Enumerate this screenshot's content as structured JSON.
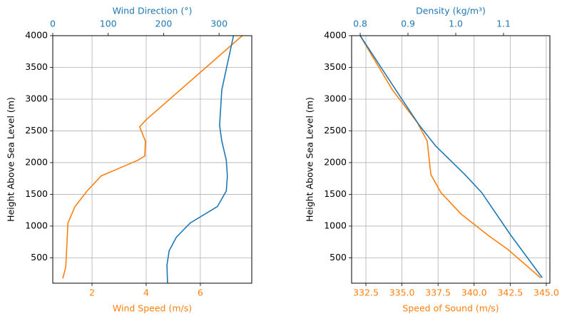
{
  "chart_data": [
    {
      "type": "line",
      "ylabel": "Height Above Sea Level (m)",
      "ylim": [
        100,
        4000
      ],
      "yticks": [
        500,
        1000,
        1500,
        2000,
        2500,
        3000,
        3500,
        4000
      ],
      "xlabel": "Wind Speed (m/s)",
      "xlim": [
        0.55,
        7.9
      ],
      "xticks": [
        2,
        4,
        6
      ],
      "x2label": "Wind Direction (°)",
      "x2lim": [
        0,
        359
      ],
      "x2ticks": [
        0,
        100,
        200,
        300
      ],
      "grid": true,
      "series": [
        {
          "color": "#ff7f0e",
          "axis": "x",
          "x": [
            0.92,
            1.03,
            1.11,
            1.37,
            1.82,
            2.34,
            2.95,
            3.69,
            3.95,
            3.97,
            3.76,
            4.0,
            7.55
          ],
          "y": [
            174,
            354,
            1049,
            1307,
            1554,
            1790,
            1902,
            2036,
            2104,
            2340,
            2564,
            2676,
            4000
          ]
        },
        {
          "color": "#1f77b4",
          "axis": "x2",
          "x": [
            207,
            206,
            210,
            223,
            248,
            297,
            313,
            315,
            313,
            305,
            301,
            305,
            326
          ],
          "y": [
            107,
            387,
            612,
            825,
            1049,
            1307,
            1554,
            1790,
            2036,
            2340,
            2586,
            3147,
            4000
          ]
        }
      ]
    },
    {
      "type": "line",
      "ylabel": "Height Above Sea Level (m)",
      "ylim": [
        100,
        4000
      ],
      "yticks": [
        500,
        1000,
        1500,
        2000,
        2500,
        3000,
        3500,
        4000
      ],
      "xlabel": "Speed of Sound (m/s)",
      "xlim": [
        331.51,
        345.25
      ],
      "xticks": [
        332.5,
        {
          "value": 335,
          "label": "335.0"
        },
        337.5,
        {
          "value": 340,
          "label": "340.0"
        },
        342.5,
        {
          "value": 345,
          "label": "345.0"
        }
      ],
      "x2label": "Density (kg/m³)",
      "x2lim": [
        0.782,
        1.197
      ],
      "x2ticks": [
        0.8,
        0.9,
        {
          "value": 1,
          "label": "1.0"
        },
        1.1
      ],
      "grid": true,
      "series": [
        {
          "color": "#ff7f0e",
          "axis": "x",
          "x": [
            344.6,
            342.33,
            340.95,
            339.07,
            337.69,
            337.0,
            336.75,
            336.06,
            334.33,
            332.1
          ],
          "y": [
            185,
            634,
            858,
            1195,
            1531,
            1812,
            2340,
            2631,
            3147,
            4000
          ]
        },
        {
          "color": "#1f77b4",
          "axis": "x2",
          "x": [
            1.181,
            1.115,
            1.054,
            1.019,
            0.958,
            0.924,
            0.885,
            0.8
          ],
          "y": [
            185,
            858,
            1531,
            1812,
            2261,
            2586,
            3024,
            4000
          ]
        }
      ]
    }
  ]
}
